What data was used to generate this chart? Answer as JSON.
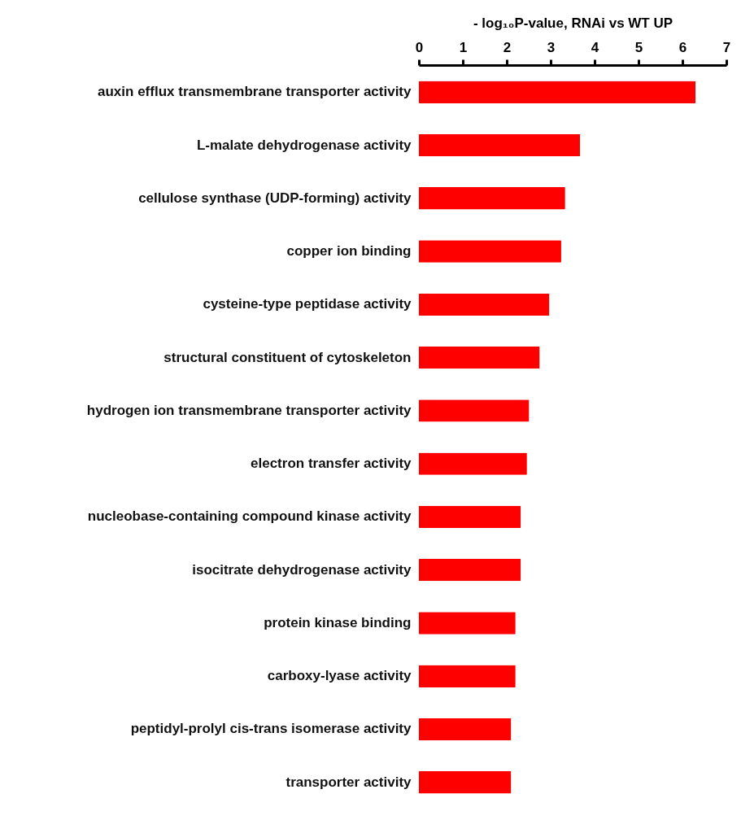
{
  "chart_data": {
    "type": "bar",
    "orientation": "horizontal",
    "xlabel": "- log₁₀P-value, RNAi vs WT UP",
    "categories": [
      "auxin efflux transmembrane transporter activity",
      "L-malate dehydrogenase activity",
      "cellulose synthase (UDP-forming) activity",
      "copper ion binding",
      "cysteine-type peptidase activity",
      "structural constituent of cytoskeleton",
      "hydrogen ion transmembrane transporter activity",
      "electron transfer activity",
      "nucleobase-containing compound kinase activity",
      "isocitrate dehydrogenase activity",
      "protein kinase binding",
      "carboxy-lyase activity",
      "peptidyl-prolyl cis-trans isomerase activity",
      "transporter activity"
    ],
    "values": [
      6.3,
      3.67,
      3.33,
      3.24,
      2.97,
      2.75,
      2.51,
      2.46,
      2.32,
      2.32,
      2.2,
      2.2,
      2.1,
      2.1
    ],
    "color": "#ff0000",
    "xlim": [
      0,
      7
    ],
    "xticks": [
      0,
      1,
      2,
      3,
      4,
      5,
      6,
      7
    ],
    "grid": false
  }
}
